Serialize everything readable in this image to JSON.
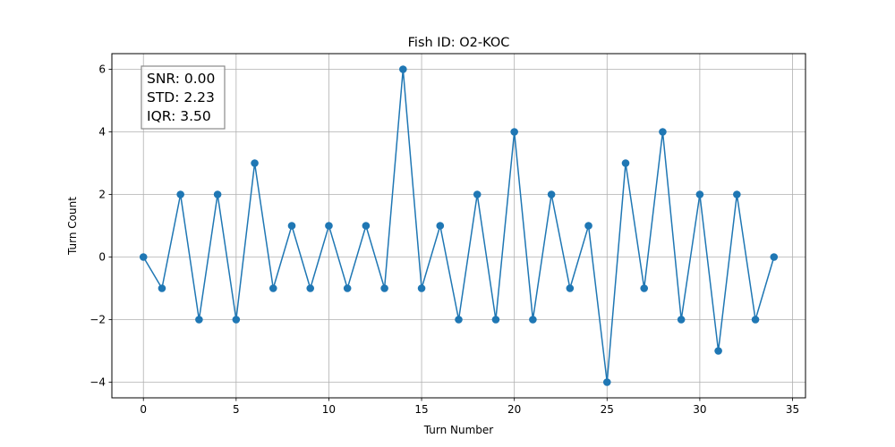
{
  "chart_data": {
    "type": "line",
    "title": "Fish ID: O2-KOC",
    "xlabel": "Turn Number",
    "ylabel": "Turn Count",
    "xlim": [
      -1.7,
      35.7
    ],
    "ylim": [
      -4.5,
      6.5
    ],
    "xticks": [
      0,
      5,
      10,
      15,
      20,
      25,
      30,
      35
    ],
    "yticks": [
      -4,
      -2,
      0,
      2,
      4,
      6
    ],
    "ytick_labels": [
      "−4",
      "−2",
      "0",
      "2",
      "4",
      "6"
    ],
    "grid": true,
    "marker": "circle",
    "series": [
      {
        "color": "#1f77b4",
        "x": [
          0,
          1,
          2,
          3,
          4,
          5,
          6,
          7,
          8,
          9,
          10,
          11,
          12,
          13,
          14,
          15,
          16,
          17,
          18,
          19,
          20,
          21,
          22,
          23,
          24,
          25,
          26,
          27,
          28,
          29,
          30,
          31,
          32,
          33,
          34
        ],
        "y": [
          0,
          -1,
          2,
          -2,
          2,
          -2,
          3,
          -1,
          1,
          -1,
          1,
          -1,
          1,
          -1,
          6,
          -1,
          1,
          -2,
          2,
          -2,
          4,
          -2,
          2,
          -1,
          1,
          -4,
          3,
          -1,
          4,
          -2,
          2,
          -3,
          2,
          -2,
          0
        ]
      }
    ],
    "annotation": {
      "position": "top-left",
      "lines": [
        "SNR: 0.00",
        "STD: 2.23",
        "IQR: 3.50"
      ]
    }
  }
}
